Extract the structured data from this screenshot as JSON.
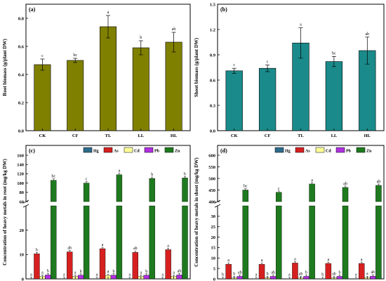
{
  "chart_data": [
    {
      "panel_label": "(a)",
      "type": "bar",
      "ylabel": "Root biomass (g/plant DW)",
      "categories": [
        "CK",
        "CF",
        "TL",
        "LL",
        "HL"
      ],
      "values": [
        0.47,
        0.5,
        0.74,
        0.59,
        0.63
      ],
      "errors": [
        0.04,
        0.015,
        0.08,
        0.05,
        0.07
      ],
      "letters": [
        "c",
        "bc",
        "a",
        "b",
        "ab"
      ],
      "ylim": [
        0,
        0.9
      ],
      "yticks": [
        "0.0",
        "0.2",
        "0.4",
        "0.6",
        "0.8"
      ],
      "colors": {
        "bar": "#808000"
      }
    },
    {
      "panel_label": "(b)",
      "type": "bar",
      "ylabel": "Shoot biomass (g/plant DW)",
      "categories": [
        "CK",
        "CF",
        "TL",
        "LL",
        "HL"
      ],
      "values": [
        0.71,
        0.74,
        1.04,
        0.82,
        0.95
      ],
      "errors": [
        0.03,
        0.04,
        0.18,
        0.06,
        0.16
      ],
      "letters": [
        "c",
        "c",
        "a",
        "bc",
        "ab"
      ],
      "ylim": [
        0,
        1.5
      ],
      "yticks": [
        "0.0",
        "0.3",
        "0.6",
        "0.9",
        "1.2",
        "1.5"
      ],
      "colors": {
        "bar": "#1a8a8a"
      }
    },
    {
      "panel_label": "(c)",
      "type": "bar",
      "ylabel": "Concentration of heavy metals in root (mg/kg DW)",
      "categories": [
        "CK",
        "CF",
        "TL",
        "LL",
        "HL"
      ],
      "series": [
        {
          "name": "Hg",
          "values": [
            0.1,
            0.1,
            0.1,
            0.1,
            0.1
          ],
          "letters": [
            "a",
            "a",
            "a",
            "a",
            "a"
          ]
        },
        {
          "name": "As",
          "values": [
            10.3,
            11.1,
            12.4,
            10.9,
            12.0
          ],
          "letters": [
            "b",
            "ab",
            "a",
            "ab",
            "a"
          ]
        },
        {
          "name": "Cd",
          "values": [
            1.0,
            1.0,
            1.4,
            1.0,
            1.0
          ],
          "letters": [
            "a",
            "a",
            "a",
            "a",
            "a"
          ]
        },
        {
          "name": "Pb",
          "values": [
            1.6,
            1.5,
            1.5,
            1.5,
            1.6
          ],
          "letters": [
            "b",
            "b",
            "b",
            "b",
            "ab"
          ]
        },
        {
          "name": "Zn",
          "values": [
            106,
            100,
            118,
            110,
            111
          ],
          "letters": [
            "bc",
            "c",
            "a",
            "b",
            "b"
          ]
        }
      ],
      "axis_break": {
        "lower_ylim": [
          0,
          30
        ],
        "lower_yticks": [
          "0",
          "10",
          "20"
        ],
        "upper_ylim": [
          60,
          160
        ],
        "upper_yticks": [
          "60",
          "80",
          "100",
          "120",
          "140",
          "160"
        ]
      },
      "colors": {
        "Hg": "#2e6b8a",
        "As": "#d62020",
        "Cd": "#ffff99",
        "Pb": "#b030e0",
        "Zn": "#1e7a1e"
      },
      "legend": "top"
    },
    {
      "panel_label": "(d)",
      "type": "bar",
      "ylabel": "Concentration of heavy metals in shoot (mg/kg DW)",
      "categories": [
        "CK",
        "CF",
        "TL",
        "LL",
        "HL"
      ],
      "series": [
        {
          "name": "Hg",
          "values": [
            0.1,
            0.1,
            0.1,
            0.1,
            0.1
          ],
          "letters": [
            "b",
            "a",
            "a",
            "b",
            "a"
          ]
        },
        {
          "name": "As",
          "values": [
            7.0,
            7.0,
            7.6,
            7.4,
            7.4
          ],
          "letters": [
            "a",
            "a",
            "a",
            "a",
            "a"
          ]
        },
        {
          "name": "Cd",
          "values": [
            0.5,
            0.5,
            0.5,
            0.5,
            0.6
          ],
          "letters": [
            "b",
            "b",
            "ab",
            "ab",
            "a"
          ]
        },
        {
          "name": "Pb",
          "values": [
            1.2,
            1.2,
            1.2,
            1.2,
            1.3
          ],
          "letters": [
            "ab",
            "ab",
            "b",
            "b",
            "ab"
          ]
        },
        {
          "name": "Zn",
          "values": [
            450,
            440,
            476,
            461,
            470
          ],
          "letters": [
            "bc",
            "c",
            "a",
            "ab",
            "ab"
          ]
        }
      ],
      "axis_break": {
        "lower_ylim": [
          0,
          35
        ],
        "lower_yticks": [
          "0",
          "5",
          "10",
          "15",
          "20",
          "25",
          "30"
        ],
        "upper_ylim": [
          400,
          600
        ],
        "upper_yticks": [
          "400",
          "450",
          "500",
          "550",
          "600"
        ]
      },
      "colors": {
        "Hg": "#2e6b8a",
        "As": "#d62020",
        "Cd": "#ffff99",
        "Pb": "#b030e0",
        "Zn": "#1e7a1e"
      },
      "legend": "top"
    }
  ]
}
